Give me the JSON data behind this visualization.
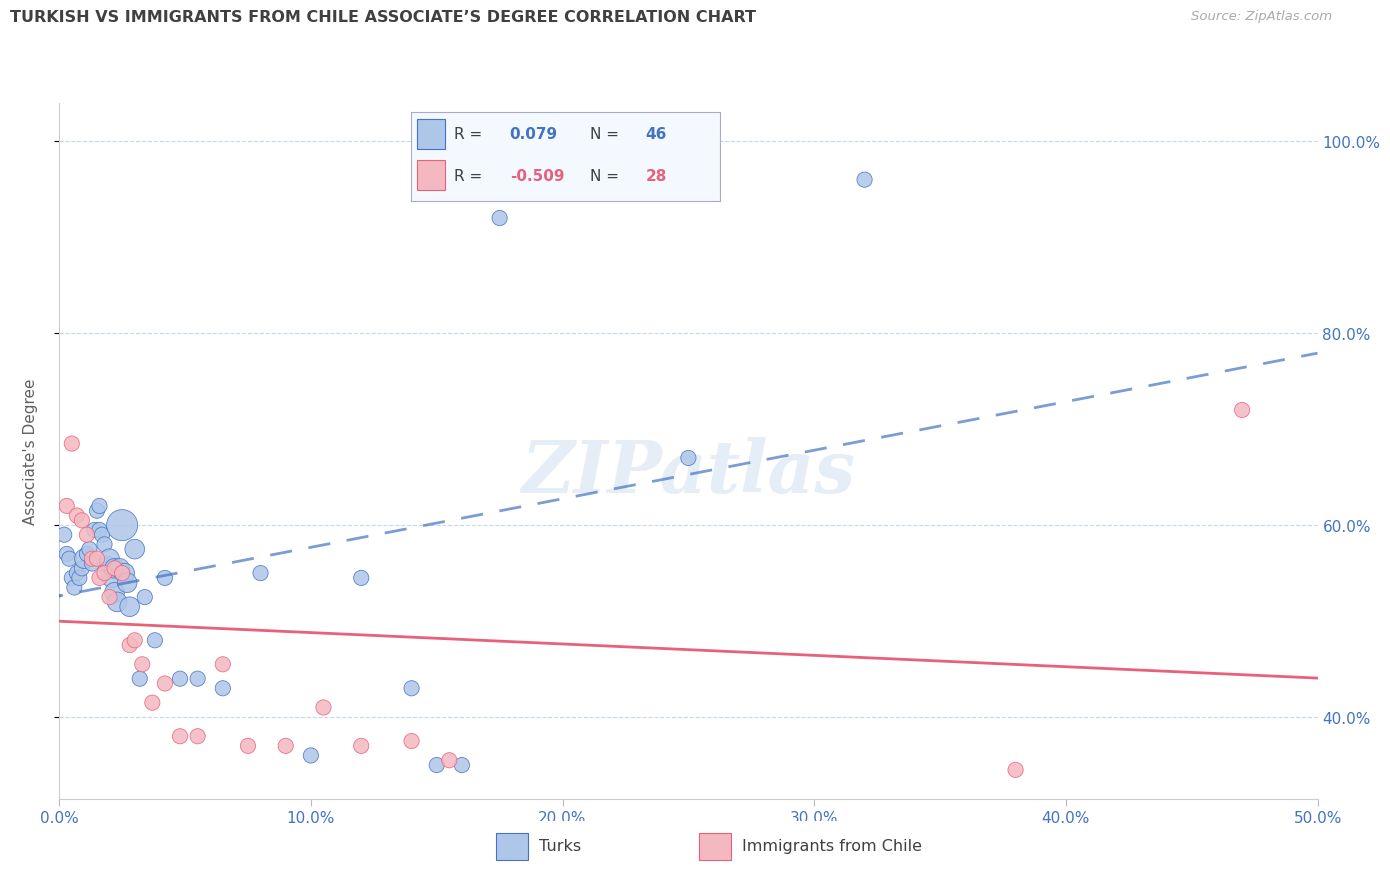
{
  "title": "TURKISH VS IMMIGRANTS FROM CHILE ASSOCIATE’S DEGREE CORRELATION CHART",
  "source": "Source: ZipAtlas.com",
  "ylabel": "Associate's Degree",
  "xmin": 0.0,
  "xmax": 0.5,
  "ymin": 0.315,
  "ymax": 1.04,
  "turks_R": 0.079,
  "turks_N": 46,
  "chile_R": -0.509,
  "chile_N": 28,
  "turks_color": "#aec6e8",
  "chile_color": "#f4b8c0",
  "turks_line_color": "#4472c4",
  "chile_line_color": "#e8607a",
  "watermark_text": "ZIPatlas",
  "background_color": "#ffffff",
  "grid_color": "#c8d8ea",
  "title_color": "#404040",
  "tick_label_color": "#4472c4",
  "ylabel_color": "#606060",
  "turks_x": [
    0.002,
    0.003,
    0.004,
    0.005,
    0.006,
    0.007,
    0.008,
    0.009,
    0.01,
    0.011,
    0.012,
    0.013,
    0.014,
    0.015,
    0.016,
    0.016,
    0.017,
    0.018,
    0.019,
    0.02,
    0.021,
    0.022,
    0.022,
    0.023,
    0.024,
    0.025,
    0.026,
    0.027,
    0.028,
    0.03,
    0.032,
    0.034,
    0.038,
    0.042,
    0.048,
    0.055,
    0.065,
    0.08,
    0.1,
    0.12,
    0.14,
    0.15,
    0.16,
    0.175,
    0.25,
    0.32
  ],
  "turks_y": [
    0.59,
    0.57,
    0.565,
    0.545,
    0.535,
    0.55,
    0.545,
    0.555,
    0.565,
    0.57,
    0.575,
    0.56,
    0.595,
    0.615,
    0.62,
    0.595,
    0.59,
    0.58,
    0.56,
    0.565,
    0.545,
    0.555,
    0.53,
    0.52,
    0.555,
    0.6,
    0.55,
    0.54,
    0.515,
    0.575,
    0.44,
    0.525,
    0.48,
    0.545,
    0.44,
    0.44,
    0.43,
    0.55,
    0.36,
    0.545,
    0.43,
    0.35,
    0.35,
    0.92,
    0.67,
    0.96
  ],
  "turks_size": [
    120,
    120,
    120,
    120,
    120,
    120,
    120,
    120,
    200,
    120,
    120,
    120,
    120,
    120,
    120,
    120,
    120,
    120,
    120,
    200,
    200,
    200,
    200,
    200,
    200,
    500,
    200,
    200,
    200,
    200,
    120,
    120,
    120,
    120,
    120,
    120,
    120,
    120,
    120,
    120,
    120,
    120,
    120,
    120,
    120,
    120
  ],
  "chile_x": [
    0.003,
    0.005,
    0.007,
    0.009,
    0.011,
    0.013,
    0.015,
    0.016,
    0.018,
    0.02,
    0.022,
    0.025,
    0.028,
    0.03,
    0.033,
    0.037,
    0.042,
    0.048,
    0.055,
    0.065,
    0.075,
    0.09,
    0.105,
    0.12,
    0.14,
    0.155,
    0.38,
    0.47
  ],
  "chile_y": [
    0.62,
    0.685,
    0.61,
    0.605,
    0.59,
    0.565,
    0.565,
    0.545,
    0.55,
    0.525,
    0.555,
    0.55,
    0.475,
    0.48,
    0.455,
    0.415,
    0.435,
    0.38,
    0.38,
    0.455,
    0.37,
    0.37,
    0.41,
    0.37,
    0.375,
    0.355,
    0.345,
    0.72
  ],
  "chile_size": [
    120,
    120,
    120,
    120,
    120,
    120,
    120,
    120,
    120,
    120,
    120,
    120,
    120,
    120,
    120,
    120,
    120,
    120,
    120,
    120,
    120,
    120,
    120,
    120,
    120,
    120,
    120,
    120
  ],
  "x_ticks": [
    0.0,
    0.1,
    0.2,
    0.3,
    0.4,
    0.5
  ],
  "y_ticks": [
    0.4,
    0.6,
    0.8,
    1.0
  ],
  "y_tick_labels": [
    "40.0%",
    "60.0%",
    "80.0%",
    "100.0%"
  ]
}
